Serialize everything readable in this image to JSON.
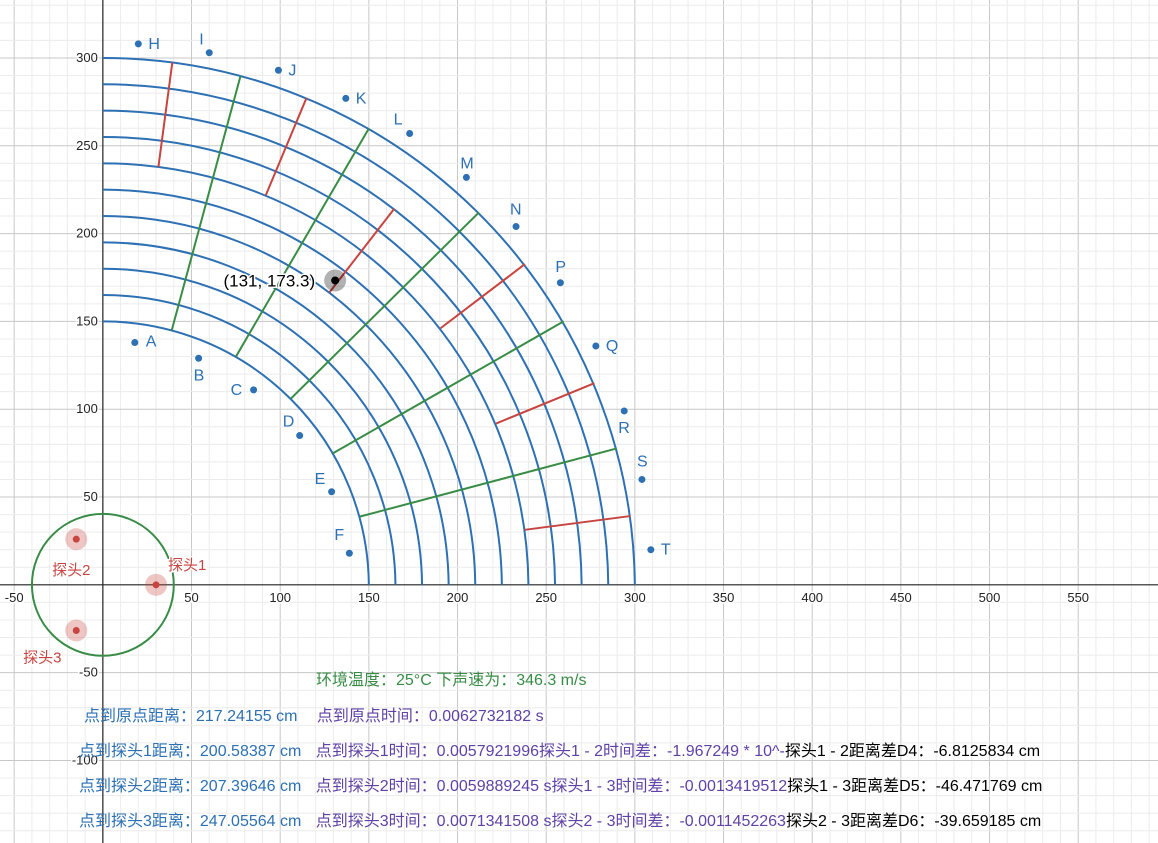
{
  "chart_data": {
    "type": "scatter",
    "xlim": [
      -58,
      595
    ],
    "ylim": [
      -147,
      333
    ],
    "grid": true,
    "x_ticks": [
      "-50",
      "50",
      "100",
      "150",
      "200",
      "250",
      "300",
      "350",
      "400",
      "450",
      "500",
      "550"
    ],
    "y_ticks": [
      "300",
      "250",
      "200",
      "150",
      "100",
      "50",
      "-50",
      "-100"
    ],
    "colors": {
      "blue": "#2d70b3",
      "red": "#c74440",
      "green": "#388c46",
      "purple": "#6042a6",
      "black": "#000000"
    },
    "arcs": {
      "center": [
        0,
        0
      ],
      "radii": [
        150,
        165,
        180,
        195,
        210,
        225,
        240,
        255,
        270,
        285,
        300
      ],
      "angle_range_deg": [
        0,
        90
      ]
    },
    "green_spokes_deg": [
      15,
      30,
      45,
      60,
      75
    ],
    "red_spokes": [
      {
        "angle_deg": 7.5,
        "r": [
          240,
          300
        ]
      },
      {
        "angle_deg": 22.5,
        "r": [
          240,
          300
        ]
      },
      {
        "angle_deg": 37.5,
        "r": [
          240,
          300
        ]
      },
      {
        "angle_deg": 52.5,
        "r": [
          210,
          270
        ]
      },
      {
        "angle_deg": 67.5,
        "r": [
          240,
          300
        ]
      },
      {
        "angle_deg": 82.5,
        "r": [
          240,
          300
        ]
      }
    ],
    "labeled_points": [
      {
        "label": "A",
        "x": 18,
        "y": 138
      },
      {
        "label": "B",
        "x": 54,
        "y": 129
      },
      {
        "label": "C",
        "x": 85,
        "y": 111
      },
      {
        "label": "D",
        "x": 111,
        "y": 85
      },
      {
        "label": "E",
        "x": 129,
        "y": 53
      },
      {
        "label": "F",
        "x": 139,
        "y": 18
      },
      {
        "label": "H",
        "x": 20,
        "y": 308
      },
      {
        "label": "I",
        "x": 60,
        "y": 303
      },
      {
        "label": "J",
        "x": 99,
        "y": 293
      },
      {
        "label": "K",
        "x": 137,
        "y": 277
      },
      {
        "label": "L",
        "x": 173,
        "y": 257
      },
      {
        "label": "M",
        "x": 205,
        "y": 232
      },
      {
        "label": "N",
        "x": 233,
        "y": 204
      },
      {
        "label": "P",
        "x": 258,
        "y": 172
      },
      {
        "label": "Q",
        "x": 278,
        "y": 136
      },
      {
        "label": "R",
        "x": 294,
        "y": 99
      },
      {
        "label": "S",
        "x": 304,
        "y": 60
      },
      {
        "label": "T",
        "x": 309,
        "y": 20
      }
    ],
    "marked_point": {
      "x": 131,
      "y": 173.3,
      "label": "(131, 173.3)"
    },
    "probe_circle": {
      "center": [
        0,
        0
      ],
      "radius": 40
    },
    "probes": [
      {
        "name": "探头1",
        "x": 30,
        "y": 0
      },
      {
        "name": "探头2",
        "x": -15,
        "y": 26
      },
      {
        "name": "探头3",
        "x": -15,
        "y": -26
      }
    ]
  },
  "info": {
    "env": "环境温度：25°C 下声速为：346.3 m/s",
    "origin": {
      "dist": "点到原点距离：217.24155 cm",
      "time": "点到原点时间：0.0062732182 s"
    },
    "rows": [
      {
        "dist": "点到探头1距离：200.58387 cm",
        "time": "点到探头1时间：0.0057921996",
        "tdiff": "探头1 - 2时间差：-1.967249 * 10^-",
        "ddiff": "探头1 - 2距离差D4：-6.8125834 cm"
      },
      {
        "dist": "点到探头2距离：207.39646 cm",
        "time": "点到探头2时间：0.0059889245 s",
        "tdiff": "探头1 - 3时间差：-0.0013419512",
        "ddiff": "探头1 - 3距离差D5：-46.471769 cm"
      },
      {
        "dist": "点到探头3距离：247.05564 cm",
        "time": "点到探头3时间：0.0071341508 s",
        "tdiff": "探头2 - 3时间差：-0.0011452263",
        "ddiff": "探头2 - 3距离差D6：-39.659185 cm"
      }
    ]
  }
}
